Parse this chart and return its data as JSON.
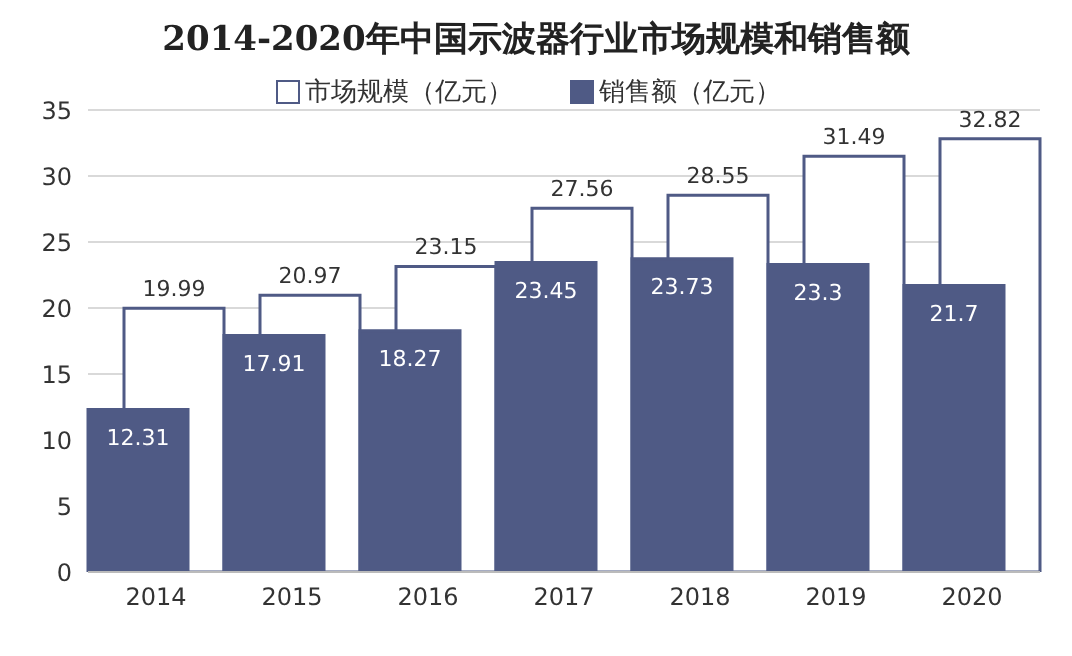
{
  "chart_data": {
    "type": "bar",
    "title": "2014-2020年中国示波器行业市场规模和销售额",
    "categories": [
      "2014",
      "2015",
      "2016",
      "2017",
      "2018",
      "2019",
      "2020"
    ],
    "series": [
      {
        "name": "市场规模（亿元）",
        "color": "#ffffff",
        "values": [
          19.99,
          20.97,
          23.15,
          27.56,
          28.55,
          31.49,
          32.82
        ]
      },
      {
        "name": "销售额（亿元）",
        "color": "#4f5a85",
        "values": [
          12.31,
          17.91,
          18.27,
          23.45,
          23.73,
          23.3,
          21.7
        ]
      }
    ],
    "ylim": [
      0,
      35
    ],
    "yticks": [
      0,
      5,
      10,
      15,
      20,
      25,
      30,
      35
    ],
    "grid": "y",
    "legend": "top",
    "data_labels": true
  }
}
